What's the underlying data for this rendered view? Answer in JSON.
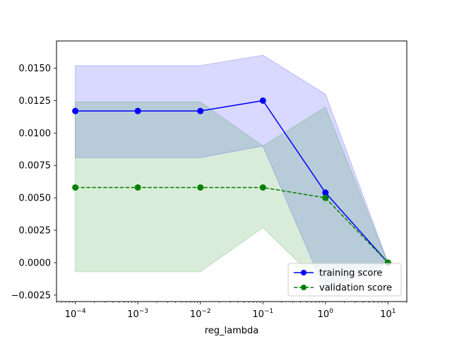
{
  "chart_data": {
    "type": "line",
    "title": "",
    "xlabel": "reg_lambda",
    "ylabel": "",
    "x_scale": "log",
    "x": [
      0.0001,
      0.001,
      0.01,
      0.1,
      1,
      10
    ],
    "xlim": [
      5e-05,
      20
    ],
    "ylim": [
      -0.003,
      0.0171
    ],
    "x_ticks": [
      0.0001,
      0.001,
      0.01,
      0.1,
      1,
      10
    ],
    "x_tick_labels": [
      {
        "base": "10",
        "exp": "−4"
      },
      {
        "base": "10",
        "exp": "−3"
      },
      {
        "base": "10",
        "exp": "−2"
      },
      {
        "base": "10",
        "exp": "−1"
      },
      {
        "base": "10",
        "exp": "0"
      },
      {
        "base": "10",
        "exp": "1"
      }
    ],
    "y_ticks": [
      -0.0025,
      0.0,
      0.0025,
      0.005,
      0.0075,
      0.01,
      0.0125,
      0.015
    ],
    "y_tick_labels": [
      "−0.0025",
      "0.0000",
      "0.0025",
      "0.0050",
      "0.0075",
      "0.0100",
      "0.0125",
      "0.0150"
    ],
    "grid": false,
    "legend": "lower-right",
    "series": [
      {
        "name": "training score",
        "values": [
          0.0117,
          0.0117,
          0.0117,
          0.0125,
          0.0054,
          0.0
        ],
        "band_upper": [
          0.0152,
          0.0152,
          0.0152,
          0.016,
          0.013,
          0.0
        ],
        "band_lower": [
          0.0081,
          0.0081,
          0.0081,
          0.009,
          -0.0022,
          0.0
        ],
        "color": "#0000ff",
        "band_color": "#0000ff",
        "line_style": "solid",
        "marker": "circle"
      },
      {
        "name": "validation score",
        "values": [
          0.0058,
          0.0058,
          0.0058,
          0.0058,
          0.005,
          0.0
        ],
        "band_upper": [
          0.0124,
          0.0124,
          0.0124,
          0.009,
          0.012,
          0.0
        ],
        "band_lower": [
          -0.0007,
          -0.0007,
          -0.0007,
          0.0027,
          -0.002,
          0.0
        ],
        "color": "#008000",
        "band_color": "#008000",
        "line_style": "dashed",
        "marker": "circle"
      }
    ]
  }
}
